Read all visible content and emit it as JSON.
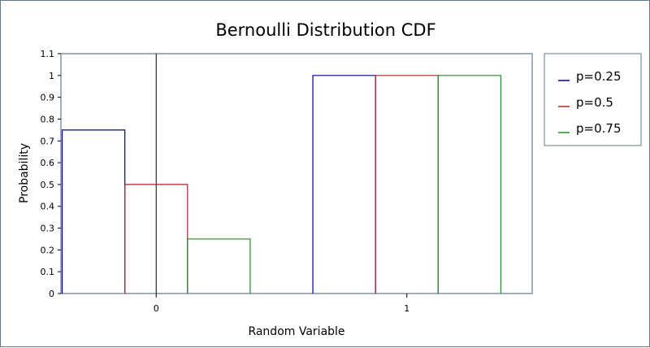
{
  "chart_data": {
    "type": "bar",
    "title": "Bernoulli Distribution CDF",
    "xlabel": "Random Variable",
    "ylabel": "Probability",
    "categories": [
      "0",
      "1"
    ],
    "xlim": [
      -0.38,
      1.5
    ],
    "ylim": [
      0,
      1.1
    ],
    "yticks": [
      "0",
      "0.1",
      "0.2",
      "0.3",
      "0.4",
      "0.5",
      "0.6",
      "0.7",
      "0.8",
      "0.9",
      "1",
      "1.1"
    ],
    "reference_line_x": 0,
    "legend_position": "right",
    "grid": false,
    "series": [
      {
        "name": "p=0.25",
        "color": "#00008b",
        "values": [
          0.75,
          1
        ]
      },
      {
        "name": "p=0.5",
        "color": "#b22222",
        "values": [
          0.5,
          1
        ]
      },
      {
        "name": "p=0.75",
        "color": "#228b22",
        "values": [
          0.25,
          1
        ]
      }
    ]
  },
  "colors": {
    "frame_border": "#5f7a8c",
    "axis": "#000000"
  }
}
